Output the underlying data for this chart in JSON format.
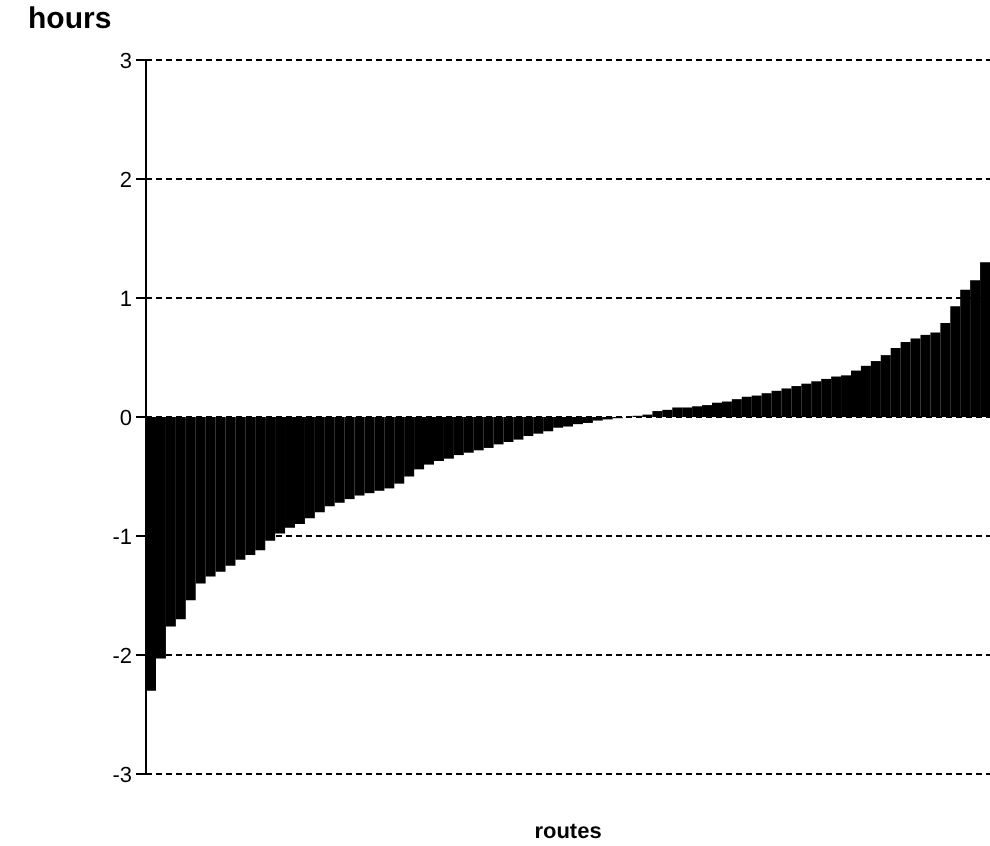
{
  "chart_data": {
    "type": "bar",
    "xlabel": "routes",
    "ylabel": "hours",
    "categories": [
      null,
      null,
      null,
      null,
      null,
      null,
      null,
      null,
      null,
      null,
      null,
      null,
      null,
      null,
      null,
      null,
      null,
      null,
      null,
      null,
      null,
      null,
      null,
      null,
      null,
      null,
      null,
      null,
      null,
      null,
      null,
      null,
      null,
      null,
      null,
      null,
      null,
      null,
      null,
      null,
      null,
      null,
      null,
      null,
      null,
      null,
      null,
      null,
      null,
      null,
      null,
      null,
      null,
      null,
      null,
      null,
      null,
      null,
      null,
      null,
      null,
      null,
      null,
      null,
      null,
      null,
      null,
      null,
      null,
      null,
      null,
      null,
      null,
      null,
      null,
      null,
      null,
      null,
      null,
      null,
      null,
      null,
      null,
      null,
      null
    ],
    "values": [
      -2.3,
      -2.03,
      -1.76,
      -1.7,
      -1.54,
      -1.4,
      -1.34,
      -1.3,
      -1.25,
      -1.2,
      -1.16,
      -1.12,
      -1.04,
      -0.98,
      -0.93,
      -0.9,
      -0.85,
      -0.8,
      -0.75,
      -0.72,
      -0.69,
      -0.66,
      -0.64,
      -0.62,
      -0.6,
      -0.56,
      -0.5,
      -0.44,
      -0.4,
      -0.37,
      -0.35,
      -0.32,
      -0.3,
      -0.28,
      -0.26,
      -0.23,
      -0.21,
      -0.19,
      -0.16,
      -0.14,
      -0.12,
      -0.09,
      -0.08,
      -0.06,
      -0.05,
      -0.03,
      -0.02,
      -0.01,
      0,
      0.01,
      0.02,
      0.05,
      0.06,
      0.08,
      0.08,
      0.09,
      0.1,
      0.12,
      0.13,
      0.15,
      0.17,
      0.18,
      0.2,
      0.22,
      0.24,
      0.26,
      0.28,
      0.3,
      0.32,
      0.34,
      0.35,
      0.39,
      0.43,
      0.47,
      0.52,
      0.58,
      0.63,
      0.66,
      0.69,
      0.71,
      0.79,
      0.93,
      1.07,
      1.15,
      1.3
    ],
    "color": "#000000",
    "ylim": [
      -3,
      3
    ],
    "yticks": [
      -3,
      -2,
      -1,
      0,
      1,
      2,
      3
    ],
    "grid": "y",
    "line_style": "dashed",
    "tick_labels": "y"
  }
}
